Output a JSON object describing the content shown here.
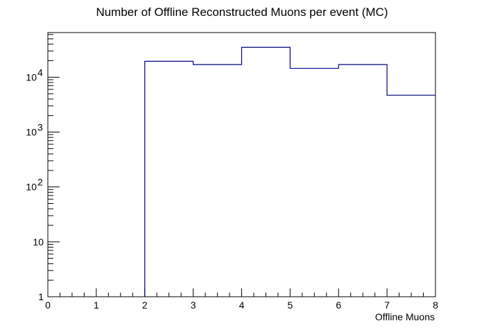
{
  "chart_data": {
    "type": "bar",
    "style": "step-histogram",
    "title": "Number of Offline Reconstructed Muons per event (MC)",
    "xlabel": "Offline Muons",
    "ylabel": "",
    "xlim": [
      0,
      8
    ],
    "ylim": [
      1,
      65000
    ],
    "yscale": "log",
    "grid": false,
    "line_color": "#000080",
    "bins": [
      {
        "x0": 0,
        "x1": 1,
        "value": 0
      },
      {
        "x0": 1,
        "x1": 2,
        "value": 0
      },
      {
        "x0": 2,
        "x1": 3,
        "value": 19500
      },
      {
        "x0": 3,
        "x1": 4,
        "value": 17000
      },
      {
        "x0": 4,
        "x1": 5,
        "value": 35000
      },
      {
        "x0": 5,
        "x1": 6,
        "value": 14500
      },
      {
        "x0": 6,
        "x1": 7,
        "value": 17000
      },
      {
        "x0": 7,
        "x1": 8,
        "value": 4700
      }
    ],
    "x_ticks": [
      "0",
      "1",
      "2",
      "3",
      "4",
      "5",
      "6",
      "7",
      "8"
    ],
    "y_ticks": [
      {
        "value": 1,
        "base": "1",
        "exp": ""
      },
      {
        "value": 10,
        "base": "10",
        "exp": ""
      },
      {
        "value": 100,
        "base": "10",
        "exp": "2"
      },
      {
        "value": 1000,
        "base": "10",
        "exp": "3"
      },
      {
        "value": 10000,
        "base": "10",
        "exp": "4"
      }
    ]
  }
}
